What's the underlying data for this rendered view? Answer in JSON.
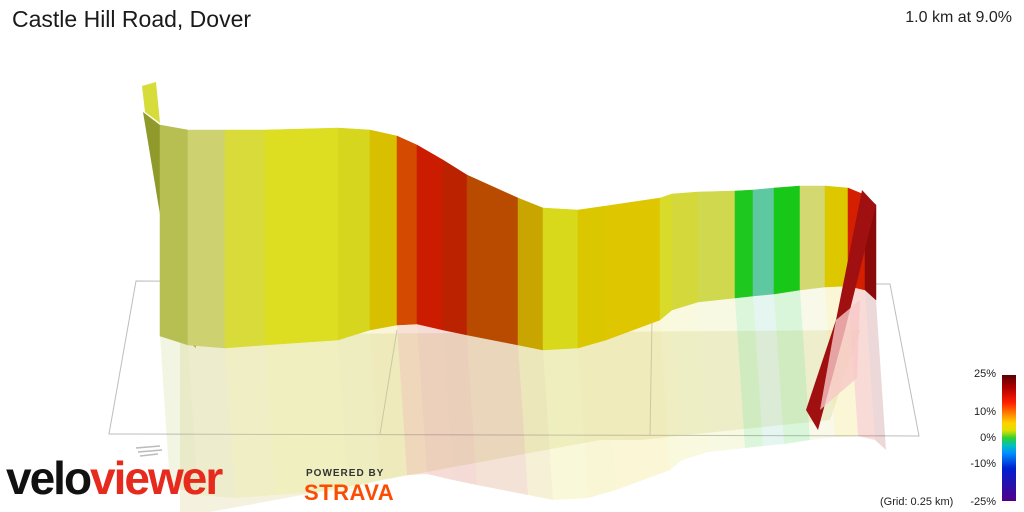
{
  "header": {
    "title": "Castle Hill Road, Dover",
    "summary": "1.0 km at 9.0%"
  },
  "branding": {
    "logo_part1": "velo",
    "logo_part2": "viewer",
    "powered_by": "POWERED BY",
    "strava": "STRAVA"
  },
  "legend": {
    "labels": [
      "25%",
      "10%",
      "0%",
      "-10%",
      "-25%"
    ],
    "grid_note": "(Grid: 0.25 km)"
  },
  "profile": {
    "segment_colors": [
      "#b7bf52",
      "#cdd170",
      "#d9db3a",
      "#dddd22",
      "#d6d61e",
      "#d8c000",
      "#d44a00",
      "#cc1c00",
      "#bb2200",
      "#b84b00",
      "#c9a500",
      "#d7d91a",
      "#dbc700",
      "#dec600",
      "#d9db2a",
      "#d4d83a",
      "#d0d84e",
      "#1ec81e",
      "#5ec8a0",
      "#18c818",
      "#d4d870",
      "#ddc800",
      "#d42000",
      "#8a0a0a"
    ],
    "accent_colors": {
      "wall_side": "#8f9a2a",
      "tail": "#6b2a2a"
    }
  }
}
